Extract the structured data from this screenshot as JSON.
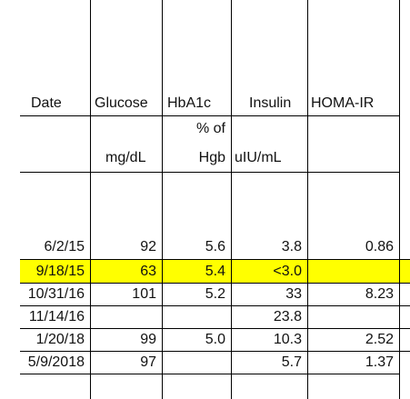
{
  "spreadsheet": {
    "headers": {
      "date": "Date",
      "glucose": "Glucose",
      "hba1c": "HbA1c",
      "insulin": "Insulin",
      "homa_ir": "HOMA-IR"
    },
    "units": {
      "hba1c_line1": "% of",
      "glucose": "mg/dL",
      "hba1c_line2": "Hgb",
      "insulin": "uIU/mL"
    },
    "highlight_color": "#ffff00",
    "rows": [
      {
        "date": "6/2/15",
        "glucose": "92",
        "hba1c": "5.6",
        "insulin": "3.8",
        "homa_ir": "0.86",
        "highlighted": false
      },
      {
        "date": "9/18/15",
        "glucose": "63",
        "hba1c": "5.4",
        "insulin": "<3.0",
        "homa_ir": "",
        "highlighted": true
      },
      {
        "date": "10/31/16",
        "glucose": "101",
        "hba1c": "5.2",
        "insulin": "33",
        "homa_ir": "8.23",
        "highlighted": false
      },
      {
        "date": "11/14/16",
        "glucose": "",
        "hba1c": "",
        "insulin": "23.8",
        "homa_ir": "",
        "highlighted": false
      },
      {
        "date": "1/20/18",
        "glucose": "99",
        "hba1c": "5.0",
        "insulin": "10.3",
        "homa_ir": "2.52",
        "highlighted": false
      },
      {
        "date": "5/9/2018",
        "glucose": "97",
        "hba1c": "",
        "insulin": "5.7",
        "homa_ir": "1.37",
        "highlighted": false
      }
    ]
  }
}
